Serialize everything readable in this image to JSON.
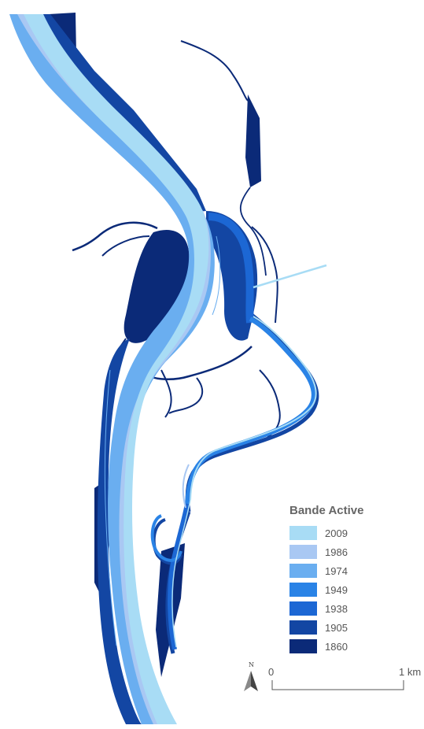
{
  "legend": {
    "title": "Bande Active",
    "items": [
      {
        "label": "2009",
        "color": "#a8dcf5"
      },
      {
        "label": "1986",
        "color": "#a9c8f3"
      },
      {
        "label": "1974",
        "color": "#6aaef0"
      },
      {
        "label": "1949",
        "color": "#2a83e6"
      },
      {
        "label": "1938",
        "color": "#1c67d4"
      },
      {
        "label": "1905",
        "color": "#1346a3"
      },
      {
        "label": "1860",
        "color": "#0b2a78"
      }
    ]
  },
  "scale_bar": {
    "start_label": "0",
    "end_label": "1 km",
    "north_letter": "N"
  }
}
